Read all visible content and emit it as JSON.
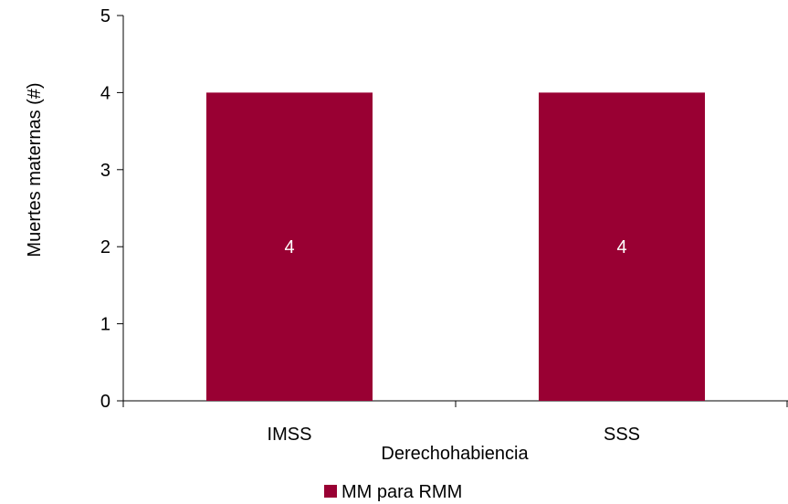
{
  "chart_data": {
    "type": "bar",
    "title": "",
    "categories": [
      "IMSS",
      "SSS"
    ],
    "series": [
      {
        "name": "MM para RMM",
        "values": [
          4,
          4
        ],
        "color": "#990033"
      }
    ],
    "data_labels": [
      "4",
      "4"
    ],
    "xlabel": "Derechohabiencia",
    "ylabel": "Muertes maternas (#)",
    "ylim": [
      0,
      5
    ],
    "yticks": [
      "0",
      "1",
      "2",
      "3",
      "4",
      "5"
    ],
    "grid": false,
    "legend": {
      "position": "bottom",
      "items": [
        "MM para RMM"
      ]
    }
  }
}
